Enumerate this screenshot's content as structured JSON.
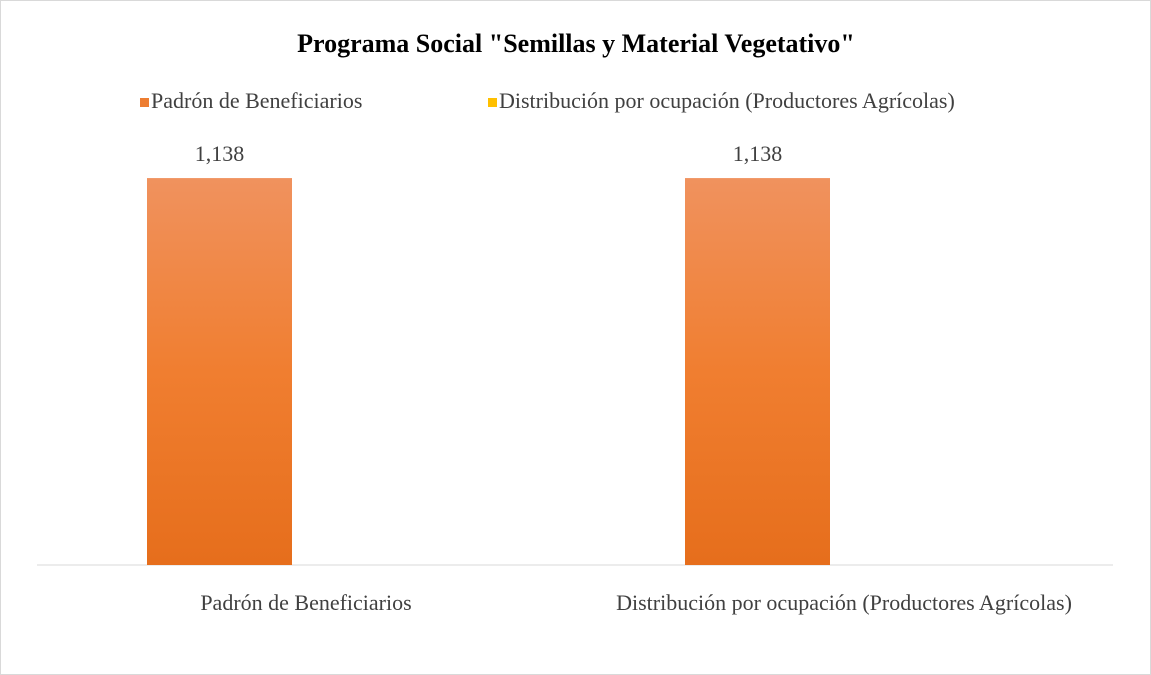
{
  "chart_data": {
    "type": "bar",
    "title": "Programa Social \"Semillas y Material Vegetativo\"",
    "categories": [
      "Padrón de Beneficiarios",
      "Distribución por ocupación (Productores Agrícolas)"
    ],
    "series": [
      {
        "name": "Padrón de Beneficiarios",
        "color": "#ed7d31",
        "values": [
          1138,
          1138
        ],
        "value_labels": [
          "1,138",
          "1,138"
        ]
      },
      {
        "name": "Distribución por ocupación (Productores Agrícolas)",
        "color": "#ffc000",
        "values": [
          null,
          null
        ]
      }
    ],
    "ylim": [
      0,
      1200
    ]
  }
}
